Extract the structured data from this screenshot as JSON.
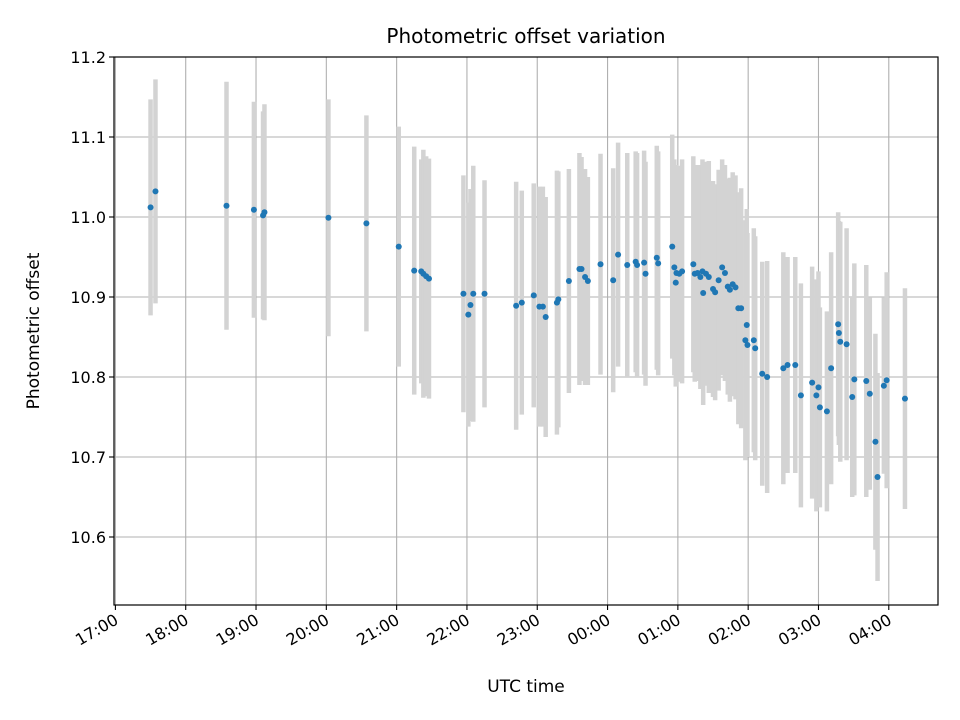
{
  "chart_data": {
    "type": "scatter",
    "title": "Photometric offset variation",
    "xlabel": "UTC time",
    "ylabel": "Photometric offset",
    "x_unit": "hours after 17:00 UTC",
    "xlim": [
      -0.02,
      11.7
    ],
    "ylim": [
      10.515,
      11.2
    ],
    "x_ticks": [
      {
        "value": 0,
        "label": "17:00"
      },
      {
        "value": 1,
        "label": "18:00"
      },
      {
        "value": 2,
        "label": "19:00"
      },
      {
        "value": 3,
        "label": "20:00"
      },
      {
        "value": 4,
        "label": "21:00"
      },
      {
        "value": 5,
        "label": "22:00"
      },
      {
        "value": 6,
        "label": "23:00"
      },
      {
        "value": 7,
        "label": "00:00"
      },
      {
        "value": 8,
        "label": "01:00"
      },
      {
        "value": 9,
        "label": "02:00"
      },
      {
        "value": 10,
        "label": "03:00"
      },
      {
        "value": 11,
        "label": "04:00"
      }
    ],
    "y_ticks": [
      {
        "value": 10.6,
        "label": "10.6"
      },
      {
        "value": 10.7,
        "label": "10.7"
      },
      {
        "value": 10.8,
        "label": "10.8"
      },
      {
        "value": 10.9,
        "label": "10.9"
      },
      {
        "value": 11.0,
        "label": "11.0"
      },
      {
        "value": 11.1,
        "label": "11.1"
      },
      {
        "value": 11.2,
        "label": "11.2"
      }
    ],
    "grid": true,
    "colors": {
      "point": "#1f77b4",
      "errorbar": "#d3d3d3",
      "grid": "#b0b0b0"
    },
    "points": [
      [
        0.5,
        11.012,
        0.135
      ],
      [
        0.57,
        11.032,
        0.14
      ],
      [
        1.58,
        11.014,
        0.155
      ],
      [
        1.97,
        11.009,
        0.135
      ],
      [
        2.1,
        11.002,
        0.13
      ],
      [
        2.12,
        11.006,
        0.135
      ],
      [
        3.03,
        10.999,
        0.148
      ],
      [
        3.57,
        10.992,
        0.135
      ],
      [
        4.03,
        10.963,
        0.15
      ],
      [
        4.25,
        10.933,
        0.155
      ],
      [
        4.35,
        10.932,
        0.14
      ],
      [
        4.38,
        10.929,
        0.155
      ],
      [
        4.42,
        10.926,
        0.15
      ],
      [
        4.46,
        10.923,
        0.15
      ],
      [
        4.95,
        10.904,
        0.148
      ],
      [
        5.02,
        10.878,
        0.14
      ],
      [
        5.05,
        10.89,
        0.145
      ],
      [
        5.09,
        10.904,
        0.16
      ],
      [
        5.25,
        10.904,
        0.142
      ],
      [
        5.7,
        10.889,
        0.155
      ],
      [
        5.78,
        10.893,
        0.14
      ],
      [
        5.95,
        10.902,
        0.14
      ],
      [
        6.03,
        10.888,
        0.15
      ],
      [
        6.08,
        10.888,
        0.15
      ],
      [
        6.12,
        10.875,
        0.15
      ],
      [
        6.28,
        10.893,
        0.165
      ],
      [
        6.3,
        10.897,
        0.16
      ],
      [
        6.45,
        10.92,
        0.14
      ],
      [
        6.6,
        10.935,
        0.145
      ],
      [
        6.63,
        10.935,
        0.14
      ],
      [
        6.68,
        10.925,
        0.135
      ],
      [
        6.72,
        10.92,
        0.13
      ],
      [
        6.9,
        10.941,
        0.138
      ],
      [
        7.08,
        10.921,
        0.14
      ],
      [
        7.15,
        10.953,
        0.14
      ],
      [
        7.28,
        10.94,
        0.14
      ],
      [
        7.4,
        10.944,
        0.138
      ],
      [
        7.42,
        10.94,
        0.14
      ],
      [
        7.52,
        10.943,
        0.14
      ],
      [
        7.54,
        10.929,
        0.14
      ],
      [
        7.7,
        10.949,
        0.14
      ],
      [
        7.72,
        10.942,
        0.14
      ],
      [
        7.92,
        10.963,
        0.14
      ],
      [
        7.95,
        10.937,
        0.135
      ],
      [
        7.97,
        10.918,
        0.13
      ],
      [
        7.98,
        10.93,
        0.135
      ],
      [
        8.02,
        10.929,
        0.135
      ],
      [
        8.06,
        10.932,
        0.14
      ],
      [
        8.22,
        10.941,
        0.135
      ],
      [
        8.24,
        10.929,
        0.135
      ],
      [
        8.28,
        10.93,
        0.135
      ],
      [
        8.32,
        10.925,
        0.14
      ],
      [
        8.35,
        10.932,
        0.14
      ],
      [
        8.36,
        10.905,
        0.14
      ],
      [
        8.4,
        10.929,
        0.14
      ],
      [
        8.44,
        10.925,
        0.145
      ],
      [
        8.5,
        10.91,
        0.135
      ],
      [
        8.53,
        10.906,
        0.135
      ],
      [
        8.58,
        10.921,
        0.138
      ],
      [
        8.63,
        10.937,
        0.135
      ],
      [
        8.67,
        10.93,
        0.135
      ],
      [
        8.71,
        10.913,
        0.135
      ],
      [
        8.74,
        10.909,
        0.14
      ],
      [
        8.78,
        10.916,
        0.14
      ],
      [
        8.82,
        10.912,
        0.14
      ],
      [
        8.86,
        10.886,
        0.145
      ],
      [
        8.9,
        10.886,
        0.15
      ],
      [
        8.96,
        10.846,
        0.15
      ],
      [
        8.98,
        10.865,
        0.145
      ],
      [
        8.99,
        10.84,
        0.14
      ],
      [
        9.08,
        10.846,
        0.14
      ],
      [
        9.1,
        10.836,
        0.14
      ],
      [
        9.2,
        10.804,
        0.14
      ],
      [
        9.27,
        10.8,
        0.145
      ],
      [
        9.5,
        10.811,
        0.145
      ],
      [
        9.56,
        10.815,
        0.135
      ],
      [
        9.67,
        10.815,
        0.135
      ],
      [
        9.75,
        10.777,
        0.14
      ],
      [
        9.91,
        10.793,
        0.145
      ],
      [
        9.97,
        10.777,
        0.145
      ],
      [
        10.0,
        10.787,
        0.145
      ],
      [
        10.02,
        10.762,
        0.125
      ],
      [
        10.12,
        10.757,
        0.125
      ],
      [
        10.18,
        10.811,
        0.145
      ],
      [
        10.28,
        10.866,
        0.14
      ],
      [
        10.29,
        10.855,
        0.14
      ],
      [
        10.31,
        10.844,
        0.15
      ],
      [
        10.4,
        10.841,
        0.145
      ],
      [
        10.48,
        10.775,
        0.125
      ],
      [
        10.51,
        10.797,
        0.145
      ],
      [
        10.68,
        10.795,
        0.145
      ],
      [
        10.73,
        10.779,
        0.12
      ],
      [
        10.81,
        10.719,
        0.135
      ],
      [
        10.84,
        10.675,
        0.13
      ],
      [
        10.93,
        10.789,
        0.11
      ],
      [
        10.97,
        10.796,
        0.135
      ],
      [
        11.23,
        10.773,
        0.138
      ]
    ]
  }
}
